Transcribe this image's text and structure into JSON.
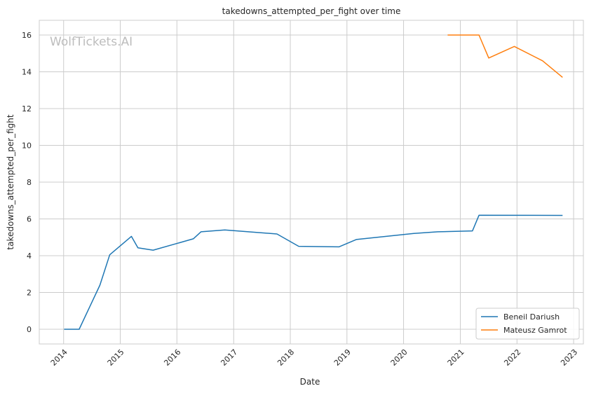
{
  "chart_data": {
    "type": "line",
    "title": "takedowns_attempted_per_fight over time",
    "xlabel": "Date",
    "ylabel": "takedowns_attempted_per_fight",
    "watermark": "WolfTickets.AI",
    "xlim": [
      "2013-07-28",
      "2023-03-05"
    ],
    "ylim": [
      -0.8,
      16.8
    ],
    "x_ticks": [
      "2014",
      "2015",
      "2016",
      "2017",
      "2018",
      "2019",
      "2020",
      "2021",
      "2022",
      "2023"
    ],
    "x_tick_dates": [
      "2014-01-01",
      "2015-01-01",
      "2016-01-01",
      "2017-01-01",
      "2018-01-01",
      "2019-01-01",
      "2020-01-01",
      "2021-01-01",
      "2022-01-01",
      "2023-01-01"
    ],
    "y_ticks": [
      0,
      2,
      4,
      6,
      8,
      10,
      12,
      14,
      16
    ],
    "grid": true,
    "legend_position": "bottom-right",
    "series": [
      {
        "name": "Beneil Dariush",
        "color": "#1f77b4",
        "points": [
          [
            "2014-01-04",
            0.0
          ],
          [
            "2014-04-11",
            0.0
          ],
          [
            "2014-08-23",
            2.4
          ],
          [
            "2014-10-25",
            4.05
          ],
          [
            "2015-03-14",
            5.05
          ],
          [
            "2015-04-25",
            4.43
          ],
          [
            "2015-08-01",
            4.3
          ],
          [
            "2016-04-16",
            4.92
          ],
          [
            "2016-06-04",
            5.3
          ],
          [
            "2016-11-05",
            5.4
          ],
          [
            "2017-10-07",
            5.18
          ],
          [
            "2018-02-24",
            4.51
          ],
          [
            "2018-11-10",
            4.48
          ],
          [
            "2019-03-02",
            4.88
          ],
          [
            "2020-03-07",
            5.21
          ],
          [
            "2020-08-08",
            5.3
          ],
          [
            "2021-03-20",
            5.35
          ],
          [
            "2021-05-01",
            6.2
          ],
          [
            "2022-10-22",
            6.19
          ]
        ]
      },
      {
        "name": "Mateusz Gamrot",
        "color": "#ff7f0e",
        "points": [
          [
            "2020-10-11",
            16.0
          ],
          [
            "2021-05-01",
            16.0
          ],
          [
            "2021-07-03",
            14.75
          ],
          [
            "2021-12-15",
            15.38
          ],
          [
            "2022-06-15",
            14.6
          ],
          [
            "2022-10-22",
            13.7
          ]
        ]
      }
    ]
  }
}
